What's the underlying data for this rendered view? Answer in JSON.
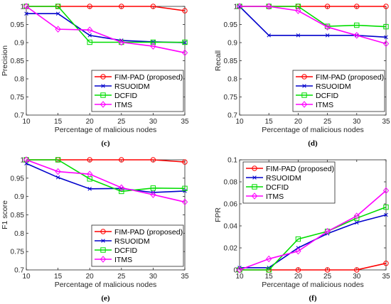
{
  "colors": {
    "FIM-PAD (proposed)": "#ff0000",
    "RSUOIDM": "#0000cc",
    "DCFID": "#00dd00",
    "ITMS": "#ff00ff"
  },
  "chart_data": [
    {
      "type": "line",
      "caption": "(c)",
      "xlabel": "Percentage of malicious nodes",
      "ylabel": "Precision",
      "x": [
        10,
        15,
        20,
        25,
        30,
        35
      ],
      "xlim": [
        10,
        35
      ],
      "xticks": [
        "10",
        "15",
        "20",
        "25",
        "30",
        "35"
      ],
      "ylim": [
        0.7,
        1
      ],
      "yticks": [
        "0.7",
        "0.75",
        "0.8",
        "0.85",
        "0.9",
        "0.95",
        "1"
      ],
      "legend_position": "bottom-right",
      "series": [
        {
          "name": "FIM-PAD (proposed)",
          "marker": "circle",
          "values": [
            1.0,
            1.0,
            1.0,
            1.0,
            1.0,
            0.988
          ]
        },
        {
          "name": "RSUOIDM",
          "marker": "x",
          "values": [
            0.98,
            0.98,
            0.92,
            0.906,
            0.902,
            0.9
          ]
        },
        {
          "name": "DCFID",
          "marker": "square",
          "values": [
            1.0,
            1.0,
            0.901,
            0.901,
            0.901,
            0.901
          ]
        },
        {
          "name": "ITMS",
          "marker": "diamond",
          "values": [
            1.0,
            0.937,
            0.935,
            0.901,
            0.89,
            0.872
          ]
        }
      ]
    },
    {
      "type": "line",
      "caption": "(d)",
      "xlabel": "Percentage of malicious nodes",
      "ylabel": "Recall",
      "x": [
        10,
        15,
        20,
        25,
        30,
        35
      ],
      "xlim": [
        10,
        35
      ],
      "xticks": [
        "10",
        "15",
        "20",
        "25",
        "30",
        "35"
      ],
      "ylim": [
        0.7,
        1
      ],
      "yticks": [
        "0.7",
        "0.75",
        "0.8",
        "0.85",
        "0.9",
        "0.95",
        "1"
      ],
      "legend_position": "bottom-right",
      "series": [
        {
          "name": "FIM-PAD (proposed)",
          "marker": "circle",
          "values": [
            1.0,
            1.0,
            1.0,
            1.0,
            1.0,
            1.0
          ]
        },
        {
          "name": "RSUOIDM",
          "marker": "x",
          "values": [
            1.0,
            0.92,
            0.92,
            0.92,
            0.92,
            0.915
          ]
        },
        {
          "name": "DCFID",
          "marker": "square",
          "values": [
            1.0,
            1.0,
            1.0,
            0.945,
            0.948,
            0.944
          ]
        },
        {
          "name": "ITMS",
          "marker": "diamond",
          "values": [
            1.0,
            1.0,
            0.988,
            0.943,
            0.92,
            0.897
          ]
        }
      ]
    },
    {
      "type": "line",
      "caption": "(e)",
      "xlabel": "Percentage of malicious nodes",
      "ylabel": "F1 score",
      "x": [
        10,
        15,
        20,
        25,
        30,
        35
      ],
      "xlim": [
        10,
        35
      ],
      "xticks": [
        "10",
        "15",
        "20",
        "25",
        "30",
        "35"
      ],
      "ylim": [
        0.7,
        1
      ],
      "yticks": [
        "0.7",
        "0.75",
        "0.8",
        "0.85",
        "0.9",
        "0.95",
        "1"
      ],
      "legend_position": "bottom-right",
      "series": [
        {
          "name": "FIM-PAD (proposed)",
          "marker": "circle",
          "values": [
            1.0,
            1.0,
            1.0,
            1.0,
            1.0,
            0.994
          ]
        },
        {
          "name": "RSUOIDM",
          "marker": "x",
          "values": [
            0.99,
            0.952,
            0.921,
            0.922,
            0.911,
            0.915
          ]
        },
        {
          "name": "DCFID",
          "marker": "square",
          "values": [
            1.0,
            1.0,
            0.948,
            0.914,
            0.923,
            0.922
          ]
        },
        {
          "name": "ITMS",
          "marker": "diamond",
          "values": [
            1.0,
            0.968,
            0.961,
            0.924,
            0.905,
            0.885
          ]
        }
      ]
    },
    {
      "type": "line",
      "caption": "(f)",
      "xlabel": "Percentage of malicious nodes",
      "ylabel": "FPR",
      "x": [
        10,
        15,
        20,
        25,
        30,
        35
      ],
      "xlim": [
        10,
        35
      ],
      "xticks": [
        "10",
        "15",
        "20",
        "25",
        "30",
        "35"
      ],
      "ylim": [
        0,
        0.1
      ],
      "yticks": [
        "0",
        "0.02",
        "0.04",
        "0.06",
        "0.08",
        "0.1"
      ],
      "legend_position": "top-left",
      "series": [
        {
          "name": "FIM-PAD (proposed)",
          "marker": "circle",
          "values": [
            0.0,
            0.0,
            0.0,
            0.0,
            0.0,
            0.006
          ]
        },
        {
          "name": "RSUOIDM",
          "marker": "x",
          "values": [
            0.002,
            0.002,
            0.02,
            0.033,
            0.043,
            0.05
          ]
        },
        {
          "name": "DCFID",
          "marker": "square",
          "values": [
            0.0,
            0.0,
            0.028,
            0.035,
            0.047,
            0.057
          ]
        },
        {
          "name": "ITMS",
          "marker": "diamond",
          "values": [
            0.0,
            0.01,
            0.017,
            0.035,
            0.049,
            0.072
          ]
        }
      ]
    }
  ]
}
